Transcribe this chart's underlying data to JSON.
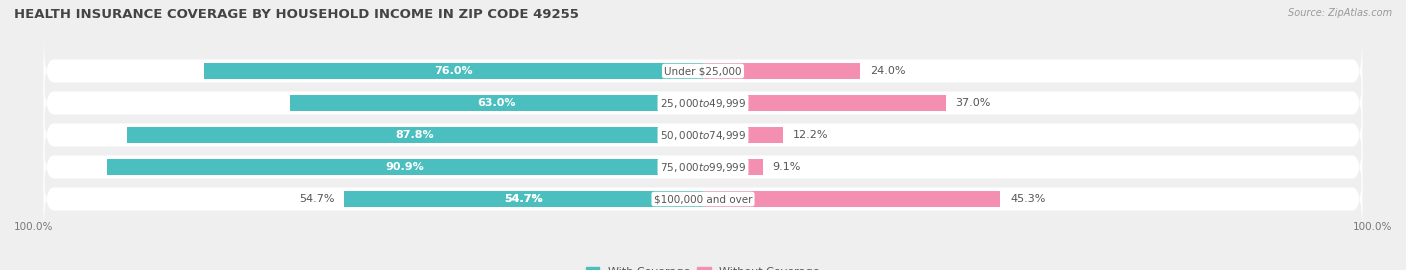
{
  "title": "HEALTH INSURANCE COVERAGE BY HOUSEHOLD INCOME IN ZIP CODE 49255",
  "source": "Source: ZipAtlas.com",
  "categories": [
    "Under $25,000",
    "$25,000 to $49,999",
    "$50,000 to $74,999",
    "$75,000 to $99,999",
    "$100,000 and over"
  ],
  "with_coverage": [
    76.0,
    63.0,
    87.8,
    90.9,
    54.7
  ],
  "without_coverage": [
    24.0,
    37.0,
    12.2,
    9.1,
    45.3
  ],
  "color_with": "#4bbfbf",
  "color_without": "#f48fb1",
  "bg_color": "#efefef",
  "title_fontsize": 9.5,
  "label_fontsize": 8,
  "tick_fontsize": 7.5,
  "source_fontsize": 7
}
